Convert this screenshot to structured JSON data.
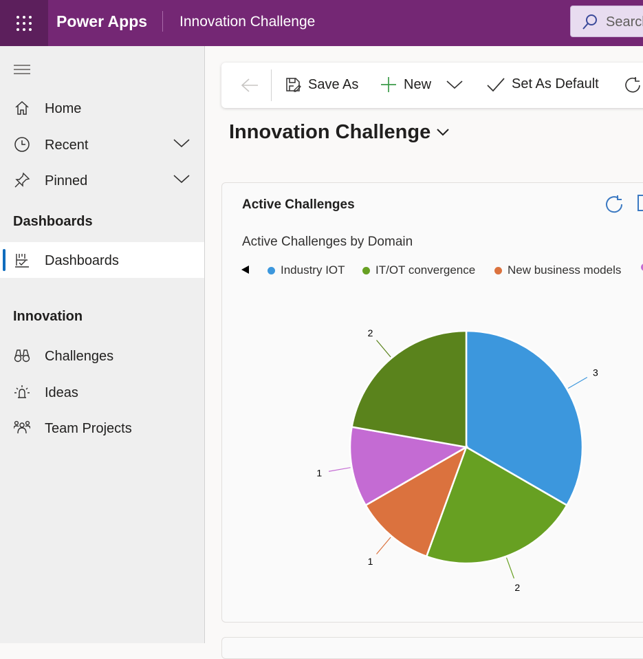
{
  "header": {
    "app_name": "Power Apps",
    "environment": "Innovation Challenge",
    "search_placeholder": "Search"
  },
  "sidebar": {
    "items": [
      {
        "label": "Home",
        "icon": "home-icon"
      },
      {
        "label": "Recent",
        "icon": "clock-icon"
      },
      {
        "label": "Pinned",
        "icon": "pin-icon"
      }
    ],
    "sections": [
      {
        "title": "Dashboards",
        "items": [
          {
            "label": "Dashboards",
            "icon": "dashboard-icon",
            "selected": true
          }
        ]
      },
      {
        "title": "Innovation",
        "items": [
          {
            "label": "Challenges",
            "icon": "binoculars-icon"
          },
          {
            "label": "Ideas",
            "icon": "lightbulb-icon"
          },
          {
            "label": "Team Projects",
            "icon": "people-team-icon"
          }
        ]
      }
    ]
  },
  "commandbar": {
    "save_as": "Save As",
    "new": "New",
    "set_default": "Set As Default"
  },
  "dashboard": {
    "title": "Innovation Challenge"
  },
  "card": {
    "title": "Active Challenges",
    "chart_title": "Active Challenges by Domain"
  },
  "chart_data": {
    "type": "pie",
    "title": "Active Challenges by Domain",
    "legend_position": "top",
    "series": [
      {
        "name": "Industry IOT",
        "value": 3,
        "color": "#3c97dd"
      },
      {
        "name": "IT/OT convergence",
        "value": 2,
        "color": "#67a022"
      },
      {
        "name": "New business models",
        "value": 1,
        "color": "#db723e"
      },
      {
        "name": "",
        "value": 1,
        "color": "#c46bd3"
      },
      {
        "name": "",
        "value": 2,
        "color": "#5a831c"
      }
    ]
  },
  "colors": {
    "brand": "#742774",
    "accent": "#0f6cbd"
  }
}
